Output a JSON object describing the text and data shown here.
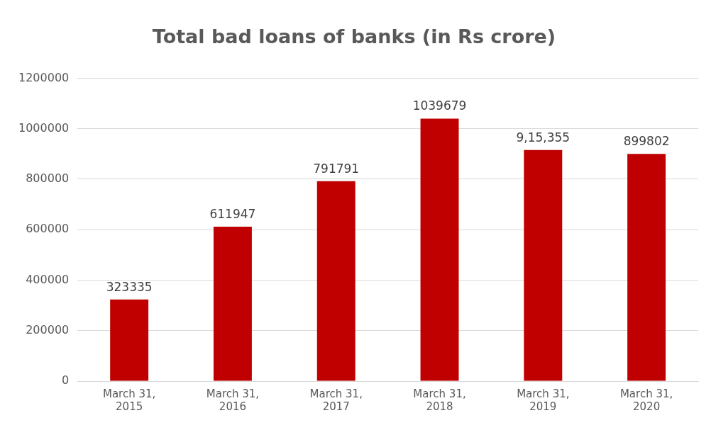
{
  "chart_data": {
    "type": "bar",
    "title": "Total bad loans of banks (in Rs crore)",
    "categories": [
      "March 31, 2015",
      "March 31, 2016",
      "March 31, 2017",
      "March 31, 2018",
      "March 31, 2019",
      "March 31, 2020"
    ],
    "values": [
      323335,
      611947,
      791791,
      1039679,
      915355,
      899802
    ],
    "value_labels": [
      "323335",
      "611947",
      "791791",
      "1039679",
      "9,15,355",
      "899802"
    ],
    "color": "#c00000",
    "ylim": [
      0,
      1200000
    ],
    "yticks": [
      0,
      200000,
      400000,
      600000,
      800000,
      1000000,
      1200000
    ],
    "grid": "y",
    "legend": false
  }
}
